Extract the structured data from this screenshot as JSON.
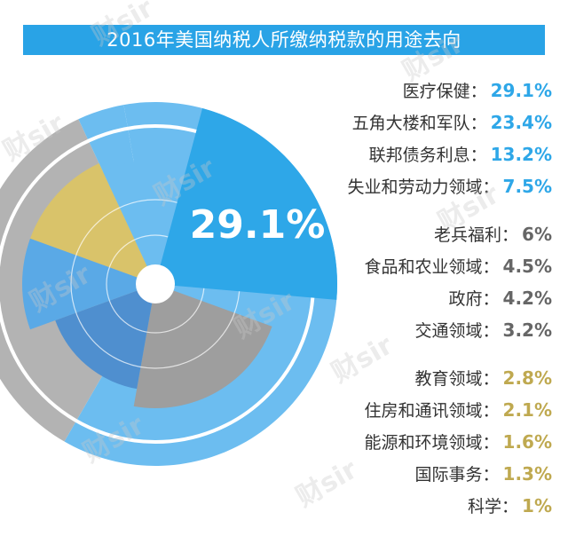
{
  "colors": {
    "title_bg": "#29a3e6",
    "group1": "#2ea7e8",
    "group2": "#666666",
    "group3": "#bfa950",
    "ring_light": "#6cbdf0",
    "wedge_highlight": "#2ea7e8",
    "wedge_tan": "#d9c36a",
    "wedge_gray": "#9e9e9e",
    "outer_gray": "#b3b3b3"
  },
  "chart_data": {
    "type": "pie",
    "title": "2016年美国纳税人所缴纳税款的用途去向",
    "unit": "%",
    "highlight_label": "29.1%",
    "groups": [
      {
        "color_key": "group1",
        "items": [
          {
            "label": "医疗保健：",
            "value": 29.1,
            "display": "29.1%"
          },
          {
            "label": "五角大楼和军队：",
            "value": 23.4,
            "display": "23.4%"
          },
          {
            "label": "联邦债务利息：",
            "value": 13.2,
            "display": "13.2%"
          },
          {
            "label": "失业和劳动力领域：",
            "value": 7.5,
            "display": "7.5%"
          }
        ]
      },
      {
        "color_key": "group2",
        "items": [
          {
            "label": "老兵福利：",
            "value": 6,
            "display": "6%"
          },
          {
            "label": "食品和农业领域：",
            "value": 4.5,
            "display": "4.5%"
          },
          {
            "label": "政府：",
            "value": 4.2,
            "display": "4.2%"
          },
          {
            "label": "交通领域：",
            "value": 3.2,
            "display": "3.2%"
          }
        ]
      },
      {
        "color_key": "group3",
        "items": [
          {
            "label": "教育领域：",
            "value": 2.8,
            "display": "2.8%"
          },
          {
            "label": "住房和通讯领域：",
            "value": 2.1,
            "display": "2.1%"
          },
          {
            "label": "能源和环境领域：",
            "value": 1.6,
            "display": "1.6%"
          },
          {
            "label": "国际事务：",
            "value": 1.3,
            "display": "1.3%"
          },
          {
            "label": "科学：",
            "value": 1,
            "display": "1%"
          }
        ]
      }
    ]
  },
  "watermark": "财sir"
}
